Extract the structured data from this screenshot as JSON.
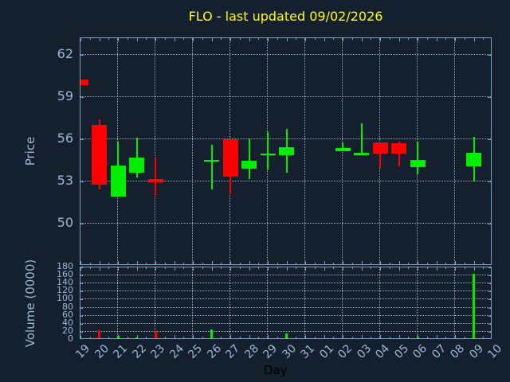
{
  "title": "FLO - last updated 09/02/2026",
  "colors": {
    "background": "#14202e",
    "axis": "#7d9fc4",
    "tick_label": "#9cb8d6",
    "grid": "#c3cdd8",
    "title": "#ffff00",
    "up": "#00ef00",
    "down": "#ff0000",
    "xlabel": "#000000"
  },
  "price_axis": {
    "label": "Price",
    "ticks": [
      62,
      59,
      56,
      53,
      50
    ],
    "ylim": [
      47.0,
      63.2
    ]
  },
  "volume_axis": {
    "label": "Volume (0000)",
    "ticks": [
      180,
      160,
      140,
      120,
      100,
      80,
      60,
      40,
      20,
      0
    ],
    "ylim": [
      0,
      180
    ]
  },
  "x_axis": {
    "label": "Day",
    "categories": [
      "19",
      "20",
      "21",
      "22",
      "23",
      "24",
      "25",
      "26",
      "27",
      "28",
      "29",
      "30",
      "31",
      "01",
      "02",
      "03",
      "04",
      "05",
      "06",
      "07",
      "08",
      "09",
      "10"
    ]
  },
  "chart_data": {
    "type": "candlestick",
    "title": "FLO - last updated 09/02/2026",
    "xlabel": "Day",
    "price_ylabel": "Price",
    "volume_ylabel": "Volume (0000)",
    "x_categories": [
      "19",
      "20",
      "21",
      "22",
      "23",
      "24",
      "25",
      "26",
      "27",
      "28",
      "29",
      "30",
      "31",
      "01",
      "02",
      "03",
      "04",
      "05",
      "06",
      "07",
      "08",
      "09",
      "10"
    ],
    "grid_day_indices": [
      2,
      4,
      6,
      8,
      10,
      12,
      14,
      16,
      18,
      20
    ],
    "price_ylim": [
      47.0,
      63.2
    ],
    "volume_ylim": [
      0,
      180
    ],
    "candles": [
      {
        "day": "19",
        "open": 60.25,
        "high": 60.25,
        "low": 59.85,
        "close": 59.85
      },
      {
        "day": "20",
        "open": 57.05,
        "high": 57.4,
        "low": 52.45,
        "close": 52.75
      },
      {
        "day": "21",
        "open": 51.95,
        "high": 55.85,
        "low": 51.95,
        "close": 54.15
      },
      {
        "day": "22",
        "open": 53.6,
        "high": 56.1,
        "low": 53.3,
        "close": 54.7
      },
      {
        "day": "23",
        "open": 53.2,
        "high": 54.75,
        "low": 52.0,
        "close": 52.95
      },
      {
        "day": "26",
        "open": 54.4,
        "high": 55.6,
        "low": 52.45,
        "close": 54.55
      },
      {
        "day": "27",
        "open": 56.0,
        "high": 56.0,
        "low": 52.1,
        "close": 53.35
      },
      {
        "day": "28",
        "open": 53.9,
        "high": 56.05,
        "low": 53.15,
        "close": 54.5
      },
      {
        "day": "29",
        "open": 54.85,
        "high": 56.5,
        "low": 53.85,
        "close": 55.0
      },
      {
        "day": "30",
        "open": 54.85,
        "high": 56.75,
        "low": 53.6,
        "close": 55.45
      },
      {
        "day": "02",
        "open": 55.15,
        "high": 55.8,
        "low": 55.15,
        "close": 55.4
      },
      {
        "day": "03",
        "open": 54.9,
        "high": 57.15,
        "low": 54.9,
        "close": 55.05
      },
      {
        "day": "04",
        "open": 55.8,
        "high": 55.8,
        "low": 53.95,
        "close": 55.0
      },
      {
        "day": "05",
        "open": 55.75,
        "high": 55.85,
        "low": 54.1,
        "close": 55.0
      },
      {
        "day": "06",
        "open": 54.05,
        "high": 55.85,
        "low": 53.5,
        "close": 54.55
      },
      {
        "day": "09",
        "open": 54.1,
        "high": 56.2,
        "low": 53.0,
        "close": 55.05
      }
    ],
    "volumes": [
      {
        "day": "20",
        "value": 24
      },
      {
        "day": "21",
        "value": 10
      },
      {
        "day": "22",
        "value": 6
      },
      {
        "day": "23",
        "value": 21
      },
      {
        "day": "26",
        "value": 26
      },
      {
        "day": "27",
        "value": 4
      },
      {
        "day": "28",
        "value": 4
      },
      {
        "day": "29",
        "value": 2
      },
      {
        "day": "30",
        "value": 16
      },
      {
        "day": "03",
        "value": 3
      },
      {
        "day": "04",
        "value": 2
      },
      {
        "day": "06",
        "value": 6
      },
      {
        "day": "09",
        "value": 165
      }
    ]
  }
}
